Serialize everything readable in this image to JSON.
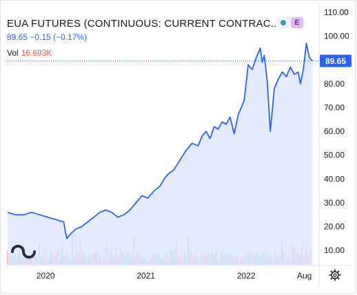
{
  "header": {
    "title": "EUA FUTURES (CONTINUOUS: CURRENT CONTRAC...",
    "quote": "89.65 −0.15 (−0.17%)",
    "vol_label": "Vol",
    "vol_value": "16.693K",
    "badge_letter": "E"
  },
  "price_tag": "89.65",
  "colors": {
    "line": "#2962ff",
    "area": "#dbe4fd",
    "vol_up": "#26a69a",
    "vol_down": "#ef5350",
    "price_tag_bg": "#2962ff"
  },
  "chart_data": {
    "type": "area",
    "ylim": [
      4,
      110
    ],
    "y_ticks": [
      "110.00",
      "100.00",
      "90.00",
      "80.00",
      "70.00",
      "60.00",
      "50.00",
      "40.00",
      "30.00",
      "20.00",
      "10.00"
    ],
    "y_tick_values": [
      110,
      100,
      90,
      80,
      70,
      60,
      50,
      40,
      30,
      20,
      10
    ],
    "x_ticks": [
      "2020",
      "2021",
      "2022",
      "Aug"
    ],
    "x_tick_values": [
      2020.0,
      2021.0,
      2022.0,
      2022.58
    ],
    "xlim": [
      2019.6,
      2022.72
    ],
    "last_value": 89.65,
    "series": [
      {
        "x": [
          2019.62,
          2019.7,
          2019.78,
          2019.86,
          2019.94,
          2020.02,
          2020.1,
          2020.18,
          2020.21,
          2020.25,
          2020.3,
          2020.36,
          2020.42,
          2020.48,
          2020.54,
          2020.6,
          2020.66,
          2020.72,
          2020.78,
          2020.84,
          2020.9,
          2020.96,
          2021.02,
          2021.08,
          2021.14,
          2021.18,
          2021.22,
          2021.28,
          2021.34,
          2021.4,
          2021.46,
          2021.52,
          2021.56,
          2021.6,
          2021.64,
          2021.68,
          2021.72,
          2021.76,
          2021.8,
          2021.84,
          2021.88,
          2021.92,
          2021.95,
          2021.98,
          2022.02,
          2022.06,
          2022.1,
          2022.14,
          2022.16,
          2022.18,
          2022.21,
          2022.24,
          2022.28,
          2022.32,
          2022.36,
          2022.4,
          2022.44,
          2022.48,
          2022.52,
          2022.54,
          2022.57,
          2022.6,
          2022.63,
          2022.66
        ],
        "y": [
          26,
          25,
          25,
          26,
          25,
          24,
          23,
          22,
          15,
          17,
          19,
          20,
          22,
          24,
          26,
          27,
          26,
          24,
          25,
          27,
          30,
          33,
          32,
          35,
          37,
          40,
          42,
          44,
          48,
          52,
          55,
          54,
          58,
          60,
          57,
          62,
          61,
          64,
          63,
          66,
          59,
          67,
          70,
          73,
          88,
          86,
          91,
          95,
          89,
          92,
          81,
          60,
          78,
          82,
          85,
          83,
          87,
          84,
          85,
          80,
          86,
          97,
          91,
          89.65
        ]
      }
    ],
    "volume": {
      "ylim": [
        0,
        100
      ],
      "note": "volume histogram rendered at bottom of pane"
    }
  }
}
